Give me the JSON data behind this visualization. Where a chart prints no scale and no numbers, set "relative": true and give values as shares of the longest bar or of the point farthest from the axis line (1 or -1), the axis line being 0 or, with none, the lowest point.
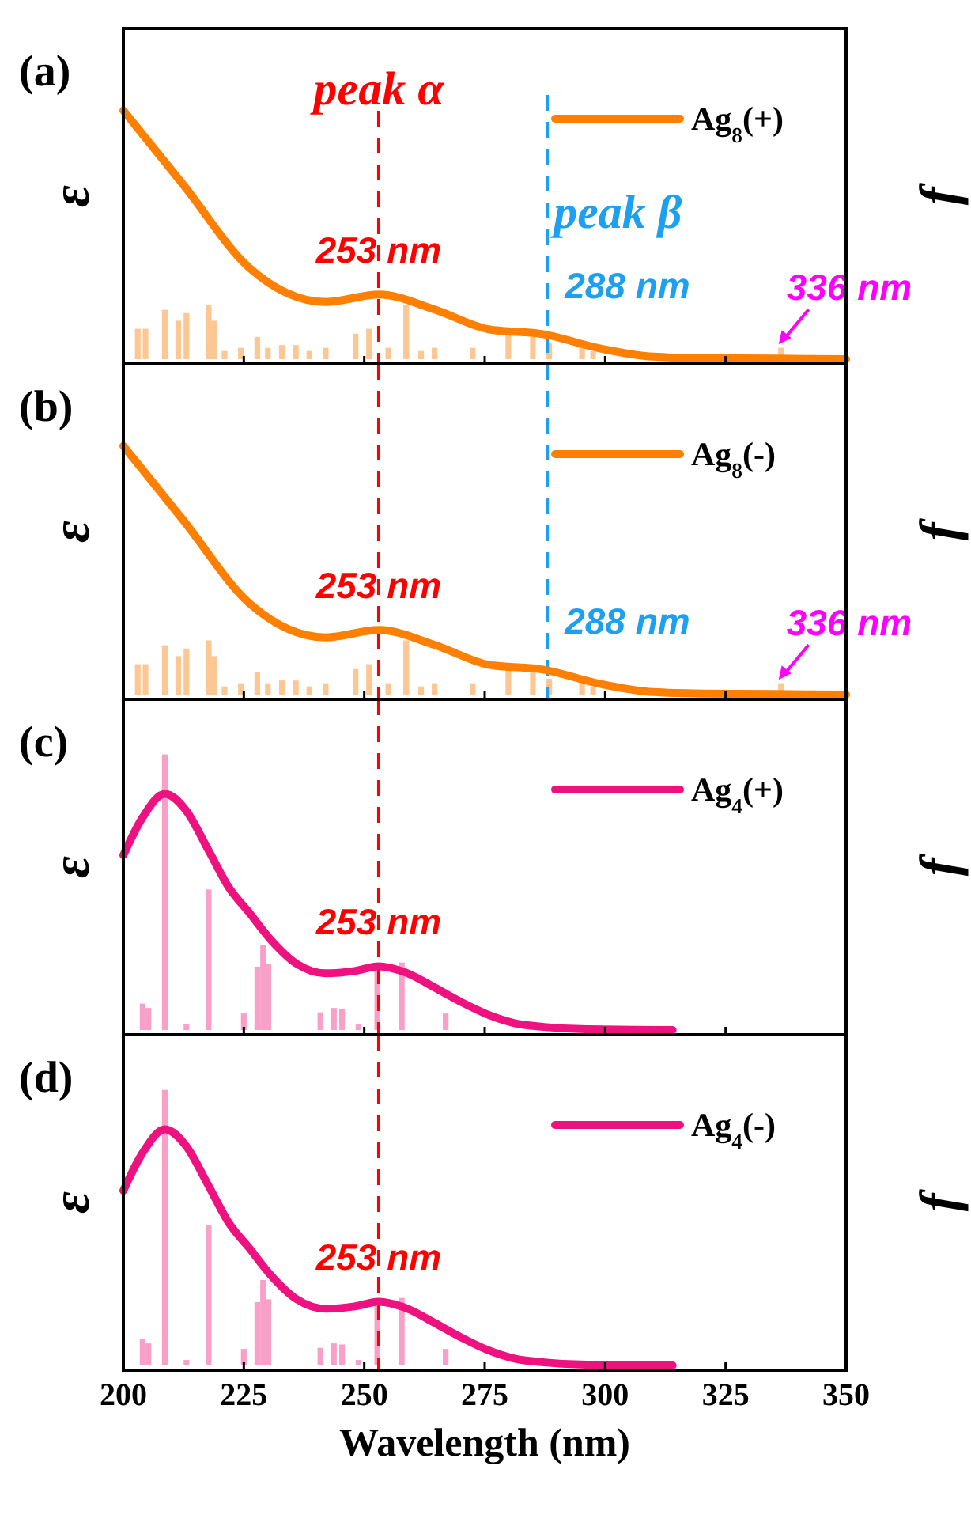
{
  "chart_data": [
    {
      "type": "line",
      "title": "(a)",
      "ylabel": "ε",
      "y2label": "f",
      "relative": true,
      "xlim": [
        200,
        350
      ],
      "xticks": [
        200,
        225,
        250,
        275,
        300,
        325,
        350
      ],
      "tick_labels": false,
      "legend": "top right",
      "series": [
        {
          "name": "Ag$_{8}$(+)",
          "color": "#ff8000",
          "x": [
            200,
            212.5,
            226,
            242,
            253,
            264.6,
            275.8,
            287.3,
            298.5,
            310,
            320,
            335,
            350
          ],
          "values": [
            1,
            0.7,
            0.37,
            0.23,
            0.26,
            0.2,
            0.12,
            0.1,
            0.045,
            0.01,
            0.004,
            0.002,
            0
          ]
        },
        {
          "type": "bar",
          "axis": "y2",
          "color": "#fdc793",
          "x": [
            203,
            204.6,
            208.6,
            211.4,
            213.1,
            217.7,
            218.8,
            221,
            224.4,
            227.8,
            230,
            232.9,
            235.8,
            238.6,
            242,
            248.2,
            251,
            255,
            258.7,
            261.8,
            264.6,
            272.5,
            279.9,
            285,
            288.4,
            295.2,
            297.5,
            336.5
          ],
          "values": [
            0.56,
            0.56,
            0.91,
            0.71,
            0.85,
            1,
            0.71,
            0.15,
            0.21,
            0.41,
            0.21,
            0.26,
            0.26,
            0.15,
            0.21,
            0.47,
            0.56,
            0.21,
            1,
            0.15,
            0.21,
            0.21,
            0.47,
            0.41,
            0.29,
            0.26,
            0.15,
            0.21
          ]
        }
      ],
      "ref_lines": [
        {
          "axis": "x",
          "value": 253,
          "label": "peak α",
          "color": "#ff0000",
          "line_style": "dashed"
        },
        {
          "axis": "x",
          "value": 288,
          "label": "peak β",
          "color": "#1ea0f0",
          "line_style": "dashed"
        }
      ],
      "annotations": [
        {
          "text": "253 nm",
          "x": 253,
          "y": 0.26
        },
        {
          "text": "288 nm",
          "x": 288,
          "y": 0.1
        },
        {
          "text": "336 nm",
          "x": 336,
          "y": 0.06
        }
      ]
    },
    {
      "type": "line",
      "title": "(b)",
      "ylabel": "ε",
      "y2label": "f",
      "relative": true,
      "xlim": [
        200,
        350
      ],
      "xticks": [
        200,
        225,
        250,
        275,
        300,
        325,
        350
      ],
      "tick_labels": false,
      "legend": "top right",
      "series": [
        {
          "name": "Ag$_{8}$(-)",
          "color": "#ff8000",
          "x": [
            200,
            212.5,
            226,
            242,
            253,
            264.6,
            275.8,
            287.3,
            298.5,
            310,
            320,
            335,
            350
          ],
          "values": [
            1,
            0.7,
            0.37,
            0.23,
            0.26,
            0.2,
            0.12,
            0.1,
            0.045,
            0.01,
            0.004,
            0.002,
            0
          ]
        },
        {
          "type": "bar",
          "axis": "y2",
          "color": "#fdc793",
          "x": [
            203,
            204.6,
            208.6,
            211.4,
            213.1,
            217.7,
            218.8,
            221,
            224.4,
            227.8,
            230,
            232.9,
            235.8,
            238.6,
            242,
            248.2,
            251,
            255,
            258.7,
            261.8,
            264.6,
            272.5,
            279.9,
            285,
            288.4,
            295.2,
            297.5,
            336.5
          ],
          "values": [
            0.56,
            0.56,
            0.91,
            0.71,
            0.85,
            1,
            0.71,
            0.15,
            0.21,
            0.41,
            0.21,
            0.26,
            0.26,
            0.15,
            0.21,
            0.47,
            0.56,
            0.21,
            1,
            0.15,
            0.21,
            0.21,
            0.47,
            0.41,
            0.29,
            0.26,
            0.15,
            0.21
          ]
        }
      ],
      "ref_lines": [
        {
          "axis": "x",
          "value": 253,
          "color": "#ff0000",
          "line_style": "dashed"
        },
        {
          "axis": "x",
          "value": 288,
          "color": "#1ea0f0",
          "line_style": "dashed"
        }
      ],
      "annotations": [
        {
          "text": "253 nm",
          "x": 253,
          "y": 0.26
        },
        {
          "text": "288 nm",
          "x": 288,
          "y": 0.1
        },
        {
          "text": "336 nm",
          "x": 336,
          "y": 0.06
        }
      ]
    },
    {
      "type": "line",
      "title": "(c)",
      "ylabel": "ε",
      "y2label": "f",
      "relative": true,
      "xlim": [
        200,
        350
      ],
      "xticks": [
        200,
        225,
        250,
        275,
        300,
        325,
        350
      ],
      "tick_labels": false,
      "legend": "top right",
      "series": [
        {
          "name": "Ag$_{4}$(+)",
          "color": "#ee1281",
          "x": [
            200,
            204,
            208.6,
            213,
            217.7,
            222,
            226,
            230.7,
            236,
            242,
            248,
            253,
            259,
            264.6,
            270,
            275.8,
            281,
            287.3,
            295,
            314
          ],
          "values": [
            0.74,
            0.9,
            1,
            0.93,
            0.76,
            0.6,
            0.5,
            0.38,
            0.28,
            0.24,
            0.25,
            0.27,
            0.24,
            0.18,
            0.12,
            0.064,
            0.03,
            0.013,
            0.004,
            0
          ]
        },
        {
          "type": "bar",
          "axis": "y2",
          "color": "#f8a0c8",
          "x": [
            204,
            205.2,
            208.6,
            213.1,
            217.7,
            225,
            227.8,
            229,
            230.1,
            240.9,
            243.7,
            245.4,
            248.8,
            252.7,
            257.8,
            266.9
          ],
          "values": [
            0.096,
            0.08,
            1,
            0.02,
            0.51,
            0.06,
            0.23,
            0.31,
            0.24,
            0.064,
            0.08,
            0.076,
            0.02,
            0.215,
            0.245,
            0.06
          ]
        }
      ],
      "ref_lines": [
        {
          "axis": "x",
          "value": 253,
          "color": "#ff0000",
          "line_style": "dashed"
        }
      ],
      "annotations": [
        {
          "text": "253 nm",
          "x": 253,
          "y": 0.27
        }
      ]
    },
    {
      "type": "line",
      "title": "(d)",
      "ylabel": "ε",
      "y2label": "f",
      "xlabel": "Wavelength (nm)",
      "relative": true,
      "xlim": [
        200,
        350
      ],
      "xticks": [
        200,
        225,
        250,
        275,
        300,
        325,
        350
      ],
      "tick_labels": "x",
      "legend": "top right",
      "series": [
        {
          "name": "Ag$_{4}$(-)",
          "color": "#ee1281",
          "x": [
            200,
            204,
            208.6,
            213,
            217.7,
            222,
            226,
            230.7,
            236,
            242,
            248,
            253,
            259,
            264.6,
            270,
            275.8,
            281,
            287.3,
            295,
            314
          ],
          "values": [
            0.74,
            0.9,
            1,
            0.93,
            0.76,
            0.6,
            0.5,
            0.38,
            0.28,
            0.24,
            0.25,
            0.27,
            0.24,
            0.18,
            0.12,
            0.064,
            0.03,
            0.013,
            0.004,
            0
          ]
        },
        {
          "type": "bar",
          "axis": "y2",
          "color": "#f8a0c8",
          "x": [
            204,
            205.2,
            208.6,
            213.1,
            217.7,
            225,
            227.8,
            229,
            230.1,
            240.9,
            243.7,
            245.4,
            248.8,
            252.7,
            257.8,
            266.9
          ],
          "values": [
            0.096,
            0.08,
            1,
            0.02,
            0.51,
            0.06,
            0.23,
            0.31,
            0.24,
            0.064,
            0.08,
            0.076,
            0.02,
            0.215,
            0.245,
            0.06
          ]
        }
      ],
      "ref_lines": [
        {
          "axis": "x",
          "value": 253,
          "color": "#ff0000",
          "line_style": "dashed"
        }
      ],
      "annotations": [
        {
          "text": "253 nm",
          "x": 253,
          "y": 0.27
        }
      ]
    }
  ]
}
